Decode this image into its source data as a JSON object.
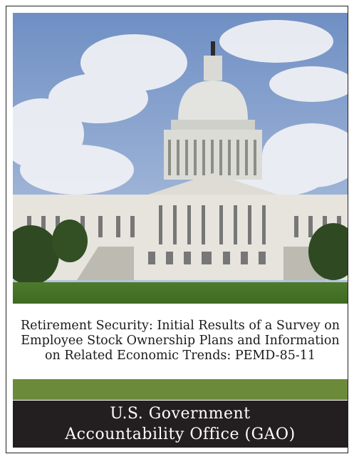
{
  "cover": {
    "title": "Retirement Security: Initial Results of a Survey on Employee Stock Ownership Plans and Information on Related Economic Trends: PEMD-85-11",
    "author": "U.S. Government Accountability Office (GAO)"
  }
}
